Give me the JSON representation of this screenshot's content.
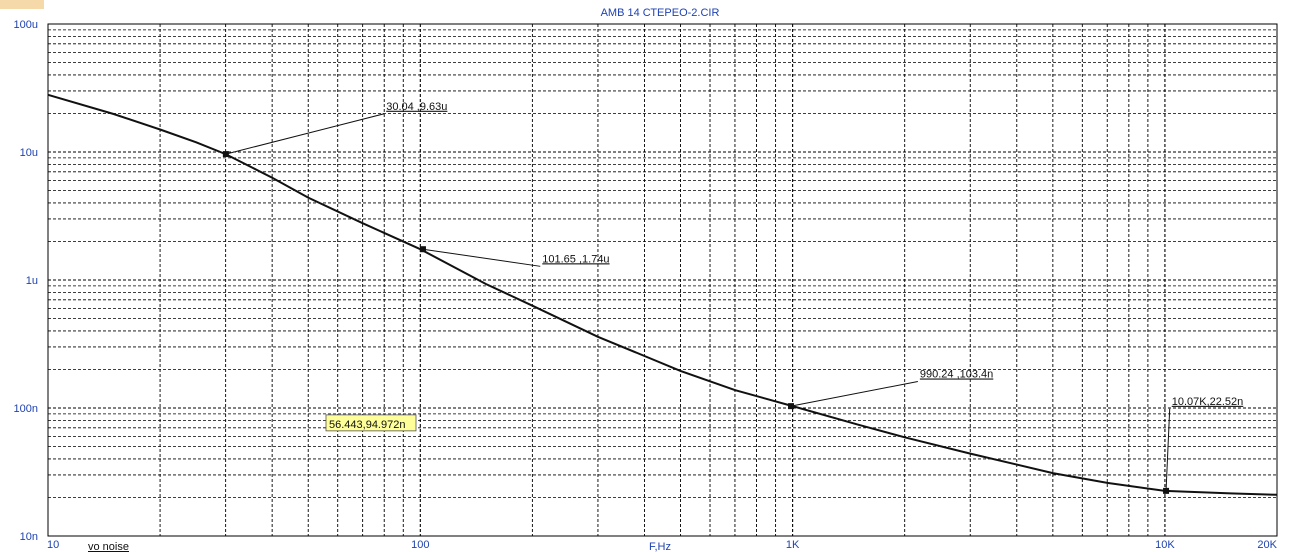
{
  "chart_data": {
    "type": "line",
    "title": "AMB 14 СТЕРЕО-2.CIR",
    "xlabel": "F,Hz",
    "ylabel": "",
    "x_scale": "log",
    "y_scale": "log",
    "xlim": [
      10,
      20000
    ],
    "ylim": [
      1e-08,
      0.0001
    ],
    "grid": true,
    "x_tick_values": [
      10,
      100,
      1000,
      10000,
      20000
    ],
    "x_tick_labels": [
      "10",
      "100",
      "1K",
      "10K",
      "20K"
    ],
    "y_tick_values": [
      0.0001,
      1e-05,
      1e-06,
      1e-07,
      1e-08
    ],
    "y_tick_labels": [
      "100u",
      "10u",
      "1u",
      "100n",
      "10n"
    ],
    "series": [
      {
        "name": "vo noise",
        "color": "#111111",
        "x": [
          10,
          15,
          20,
          25,
          30,
          40,
          50,
          70,
          100,
          150,
          200,
          300,
          400,
          500,
          700,
          1000,
          1500,
          2000,
          3000,
          5000,
          7000,
          10000,
          15000,
          20000
        ],
        "y": [
          2.8e-05,
          1.98e-05,
          1.5e-05,
          1.19e-05,
          9.63e-06,
          6.3e-06,
          4.4e-06,
          2.78e-06,
          1.74e-06,
          9.3e-07,
          6.3e-07,
          3.6e-07,
          2.55e-07,
          1.95e-07,
          1.38e-07,
          1.034e-07,
          7.4e-08,
          5.9e-08,
          4.4e-08,
          3.1e-08,
          2.6e-08,
          2.252e-08,
          2.15e-08,
          2.1e-08
        ]
      }
    ],
    "annotations": [
      {
        "text": "30.04 ,9.63u",
        "x": 30.04,
        "y": 9.63e-06,
        "label_x": 80,
        "label_y": 2.1e-05
      },
      {
        "text": "101.65 ,1.74u",
        "x": 101.65,
        "y": 1.74e-06,
        "label_x": 210,
        "label_y": 1.35e-06
      },
      {
        "text": "990.24 ,103.4n",
        "x": 990.24,
        "y": 1.034e-07,
        "label_x": 2170,
        "label_y": 1.7e-07
      },
      {
        "text": "10.07K,22.52n",
        "x": 10070,
        "y": 2.252e-08,
        "label_x": 10300,
        "label_y": 1.04e-07
      }
    ],
    "cursor_readout": {
      "text": "56.443,94.972n",
      "x": 56.443,
      "y": 9.4972e-08
    },
    "colors": {
      "axis_text": "#1f43b0",
      "grid": "#000000",
      "curve": "#111111",
      "readout_bg": "#ffff99",
      "corner_mark": "#f6d9a8"
    }
  }
}
